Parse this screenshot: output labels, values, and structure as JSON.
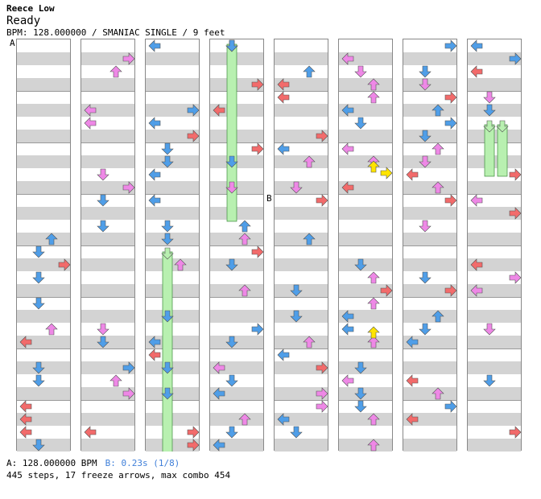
{
  "header": {
    "artist": "Reece Low",
    "title": "Ready",
    "meta": "BPM: 128.000000 / SMANIAC SINGLE / 9 feet"
  },
  "markers": {
    "a": "A",
    "b": "B"
  },
  "footer": {
    "bpm_a": "A: 128.000000 BPM",
    "stop_b": "B: 0.23s (1/8)",
    "stats": "445 steps, 17 freeze arrows, max combo 454"
  },
  "colors": {
    "quarter": "#f26b6b",
    "eighth": "#4f9ee8",
    "sixteenth": "#ee88e6",
    "special": "#ffe400",
    "freeze": "#b8f0b0",
    "band": "#d3d3d3"
  },
  "icons": [
    "left-arrow-icon",
    "down-arrow-icon",
    "up-arrow-icon",
    "right-arrow-icon",
    "freeze-arrow-icon"
  ]
}
